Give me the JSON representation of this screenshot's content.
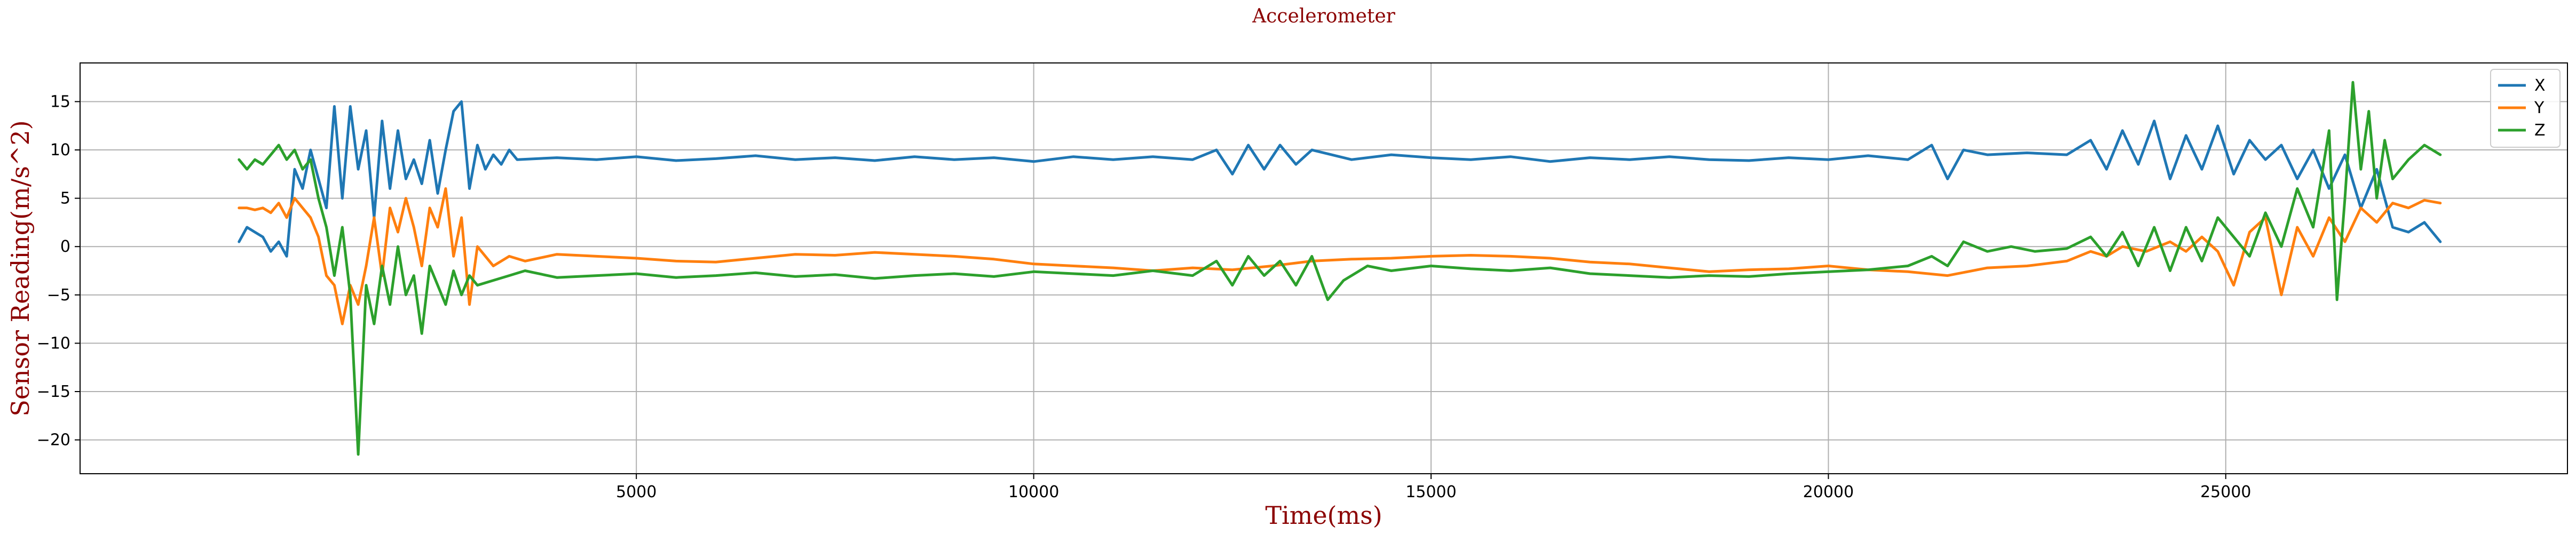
{
  "chart_data": {
    "type": "line",
    "title": "Accelerometer",
    "xlabel": "Time(ms)",
    "ylabel": "Sensor Reading(m/s^2)",
    "xlim": [
      -2000,
      29300
    ],
    "ylim": [
      -23.5,
      19
    ],
    "xticks": [
      5000,
      10000,
      15000,
      20000,
      25000
    ],
    "yticks": [
      -20,
      -15,
      -10,
      -5,
      0,
      5,
      10,
      15
    ],
    "grid": true,
    "legend_position": "top-right",
    "colors": {
      "title": "#8b0000",
      "xlabel": "#8b0000",
      "ylabel": "#8b0000"
    },
    "series": [
      {
        "name": "X",
        "color": "#1f77b4",
        "points": [
          [
            0,
            0.5
          ],
          [
            100,
            2.0
          ],
          [
            200,
            1.5
          ],
          [
            300,
            1.0
          ],
          [
            400,
            -0.5
          ],
          [
            500,
            0.5
          ],
          [
            600,
            -1.0
          ],
          [
            700,
            8.0
          ],
          [
            800,
            6.0
          ],
          [
            900,
            10.0
          ],
          [
            1000,
            7.0
          ],
          [
            1100,
            4.0
          ],
          [
            1200,
            14.5
          ],
          [
            1300,
            5.0
          ],
          [
            1400,
            14.5
          ],
          [
            1500,
            8.0
          ],
          [
            1600,
            12.0
          ],
          [
            1700,
            3.0
          ],
          [
            1800,
            13.0
          ],
          [
            1900,
            6.0
          ],
          [
            2000,
            12.0
          ],
          [
            2100,
            7.0
          ],
          [
            2200,
            9.0
          ],
          [
            2300,
            6.5
          ],
          [
            2400,
            11.0
          ],
          [
            2500,
            5.5
          ],
          [
            2600,
            10.0
          ],
          [
            2700,
            14.0
          ],
          [
            2800,
            15.0
          ],
          [
            2900,
            6.0
          ],
          [
            3000,
            10.5
          ],
          [
            3100,
            8.0
          ],
          [
            3200,
            9.5
          ],
          [
            3300,
            8.5
          ],
          [
            3400,
            10.0
          ],
          [
            3500,
            9.0
          ],
          [
            4000,
            9.2
          ],
          [
            4500,
            9.0
          ],
          [
            5000,
            9.3
          ],
          [
            5500,
            8.9
          ],
          [
            6000,
            9.1
          ],
          [
            6500,
            9.4
          ],
          [
            7000,
            9.0
          ],
          [
            7500,
            9.2
          ],
          [
            8000,
            8.9
          ],
          [
            8500,
            9.3
          ],
          [
            9000,
            9.0
          ],
          [
            9500,
            9.2
          ],
          [
            10000,
            8.8
          ],
          [
            10500,
            9.3
          ],
          [
            11000,
            9.0
          ],
          [
            11500,
            9.3
          ],
          [
            12000,
            9.0
          ],
          [
            12300,
            10.0
          ],
          [
            12500,
            7.5
          ],
          [
            12700,
            10.5
          ],
          [
            12900,
            8.0
          ],
          [
            13100,
            10.5
          ],
          [
            13300,
            8.5
          ],
          [
            13500,
            10.0
          ],
          [
            14000,
            9.0
          ],
          [
            14500,
            9.5
          ],
          [
            15000,
            9.2
          ],
          [
            15500,
            9.0
          ],
          [
            16000,
            9.3
          ],
          [
            16500,
            8.8
          ],
          [
            17000,
            9.2
          ],
          [
            17500,
            9.0
          ],
          [
            18000,
            9.3
          ],
          [
            18500,
            9.0
          ],
          [
            19000,
            8.9
          ],
          [
            19500,
            9.2
          ],
          [
            20000,
            9.0
          ],
          [
            20500,
            9.4
          ],
          [
            21000,
            9.0
          ],
          [
            21300,
            10.5
          ],
          [
            21500,
            7.0
          ],
          [
            21700,
            10.0
          ],
          [
            22000,
            9.5
          ],
          [
            22500,
            9.7
          ],
          [
            23000,
            9.5
          ],
          [
            23300,
            11.0
          ],
          [
            23500,
            8.0
          ],
          [
            23700,
            12.0
          ],
          [
            23900,
            8.5
          ],
          [
            24100,
            13.0
          ],
          [
            24300,
            7.0
          ],
          [
            24500,
            11.5
          ],
          [
            24700,
            8.0
          ],
          [
            24900,
            12.5
          ],
          [
            25100,
            7.5
          ],
          [
            25300,
            11.0
          ],
          [
            25500,
            9.0
          ],
          [
            25700,
            10.5
          ],
          [
            25900,
            7.0
          ],
          [
            26100,
            10.0
          ],
          [
            26300,
            6.0
          ],
          [
            26500,
            9.5
          ],
          [
            26700,
            4.0
          ],
          [
            26900,
            8.0
          ],
          [
            27100,
            2.0
          ],
          [
            27300,
            1.5
          ],
          [
            27500,
            2.5
          ],
          [
            27700,
            0.5
          ]
        ]
      },
      {
        "name": "Y",
        "color": "#ff7f0e",
        "points": [
          [
            0,
            4.0
          ],
          [
            100,
            4.0
          ],
          [
            200,
            3.8
          ],
          [
            300,
            4.0
          ],
          [
            400,
            3.5
          ],
          [
            500,
            4.5
          ],
          [
            600,
            3.0
          ],
          [
            700,
            5.0
          ],
          [
            800,
            4.0
          ],
          [
            900,
            3.0
          ],
          [
            1000,
            1.0
          ],
          [
            1100,
            -3.0
          ],
          [
            1200,
            -4.0
          ],
          [
            1300,
            -8.0
          ],
          [
            1400,
            -4.0
          ],
          [
            1500,
            -6.0
          ],
          [
            1600,
            -2.0
          ],
          [
            1700,
            3.0
          ],
          [
            1800,
            -3.0
          ],
          [
            1900,
            4.0
          ],
          [
            2000,
            1.5
          ],
          [
            2100,
            5.0
          ],
          [
            2200,
            2.0
          ],
          [
            2300,
            -2.0
          ],
          [
            2400,
            4.0
          ],
          [
            2500,
            2.0
          ],
          [
            2600,
            6.0
          ],
          [
            2700,
            -1.0
          ],
          [
            2800,
            3.0
          ],
          [
            2900,
            -6.0
          ],
          [
            3000,
            0.0
          ],
          [
            3200,
            -2.0
          ],
          [
            3400,
            -1.0
          ],
          [
            3600,
            -1.5
          ],
          [
            4000,
            -0.8
          ],
          [
            4500,
            -1.0
          ],
          [
            5000,
            -1.2
          ],
          [
            5500,
            -1.5
          ],
          [
            6000,
            -1.6
          ],
          [
            6500,
            -1.2
          ],
          [
            7000,
            -0.8
          ],
          [
            7500,
            -0.9
          ],
          [
            8000,
            -0.6
          ],
          [
            8500,
            -0.8
          ],
          [
            9000,
            -1.0
          ],
          [
            9500,
            -1.3
          ],
          [
            10000,
            -1.8
          ],
          [
            10500,
            -2.0
          ],
          [
            11000,
            -2.2
          ],
          [
            11500,
            -2.5
          ],
          [
            12000,
            -2.2
          ],
          [
            12500,
            -2.4
          ],
          [
            13000,
            -2.0
          ],
          [
            13500,
            -1.5
          ],
          [
            14000,
            -1.3
          ],
          [
            14500,
            -1.2
          ],
          [
            15000,
            -1.0
          ],
          [
            15500,
            -0.9
          ],
          [
            16000,
            -1.0
          ],
          [
            16500,
            -1.2
          ],
          [
            17000,
            -1.6
          ],
          [
            17500,
            -1.8
          ],
          [
            18000,
            -2.2
          ],
          [
            18500,
            -2.6
          ],
          [
            19000,
            -2.4
          ],
          [
            19500,
            -2.3
          ],
          [
            20000,
            -2.0
          ],
          [
            20500,
            -2.4
          ],
          [
            21000,
            -2.6
          ],
          [
            21500,
            -3.0
          ],
          [
            22000,
            -2.2
          ],
          [
            22500,
            -2.0
          ],
          [
            23000,
            -1.5
          ],
          [
            23300,
            -0.5
          ],
          [
            23500,
            -1.0
          ],
          [
            23700,
            0.0
          ],
          [
            24000,
            -0.5
          ],
          [
            24300,
            0.5
          ],
          [
            24500,
            -0.5
          ],
          [
            24700,
            1.0
          ],
          [
            24900,
            -0.5
          ],
          [
            25100,
            -4.0
          ],
          [
            25300,
            1.5
          ],
          [
            25500,
            3.0
          ],
          [
            25700,
            -5.0
          ],
          [
            25900,
            2.0
          ],
          [
            26100,
            -1.0
          ],
          [
            26300,
            3.0
          ],
          [
            26500,
            0.5
          ],
          [
            26700,
            4.0
          ],
          [
            26900,
            2.5
          ],
          [
            27100,
            4.5
          ],
          [
            27300,
            4.0
          ],
          [
            27500,
            4.8
          ],
          [
            27700,
            4.5
          ]
        ]
      },
      {
        "name": "Z",
        "color": "#2ca02c",
        "points": [
          [
            0,
            9.0
          ],
          [
            100,
            8.0
          ],
          [
            200,
            9.0
          ],
          [
            300,
            8.5
          ],
          [
            400,
            9.5
          ],
          [
            500,
            10.5
          ],
          [
            600,
            9.0
          ],
          [
            700,
            10.0
          ],
          [
            800,
            8.0
          ],
          [
            900,
            9.0
          ],
          [
            1000,
            5.0
          ],
          [
            1100,
            2.0
          ],
          [
            1200,
            -3.0
          ],
          [
            1300,
            2.0
          ],
          [
            1400,
            -5.0
          ],
          [
            1500,
            -21.5
          ],
          [
            1600,
            -4.0
          ],
          [
            1700,
            -8.0
          ],
          [
            1800,
            -2.0
          ],
          [
            1900,
            -6.0
          ],
          [
            2000,
            0.0
          ],
          [
            2100,
            -5.0
          ],
          [
            2200,
            -3.0
          ],
          [
            2300,
            -9.0
          ],
          [
            2400,
            -2.0
          ],
          [
            2500,
            -4.0
          ],
          [
            2600,
            -6.0
          ],
          [
            2700,
            -2.5
          ],
          [
            2800,
            -5.0
          ],
          [
            2900,
            -3.0
          ],
          [
            3000,
            -4.0
          ],
          [
            3200,
            -3.5
          ],
          [
            3400,
            -3.0
          ],
          [
            3600,
            -2.5
          ],
          [
            4000,
            -3.2
          ],
          [
            4500,
            -3.0
          ],
          [
            5000,
            -2.8
          ],
          [
            5500,
            -3.2
          ],
          [
            6000,
            -3.0
          ],
          [
            6500,
            -2.7
          ],
          [
            7000,
            -3.1
          ],
          [
            7500,
            -2.9
          ],
          [
            8000,
            -3.3
          ],
          [
            8500,
            -3.0
          ],
          [
            9000,
            -2.8
          ],
          [
            9500,
            -3.1
          ],
          [
            10000,
            -2.6
          ],
          [
            10500,
            -2.8
          ],
          [
            11000,
            -3.0
          ],
          [
            11500,
            -2.5
          ],
          [
            12000,
            -3.0
          ],
          [
            12300,
            -1.5
          ],
          [
            12500,
            -4.0
          ],
          [
            12700,
            -1.0
          ],
          [
            12900,
            -3.0
          ],
          [
            13100,
            -1.5
          ],
          [
            13300,
            -4.0
          ],
          [
            13500,
            -1.0
          ],
          [
            13700,
            -5.5
          ],
          [
            13900,
            -3.5
          ],
          [
            14200,
            -2.0
          ],
          [
            14500,
            -2.5
          ],
          [
            15000,
            -2.0
          ],
          [
            15500,
            -2.3
          ],
          [
            16000,
            -2.5
          ],
          [
            16500,
            -2.2
          ],
          [
            17000,
            -2.8
          ],
          [
            17500,
            -3.0
          ],
          [
            18000,
            -3.2
          ],
          [
            18500,
            -3.0
          ],
          [
            19000,
            -3.1
          ],
          [
            19500,
            -2.8
          ],
          [
            20000,
            -2.6
          ],
          [
            20500,
            -2.4
          ],
          [
            21000,
            -2.0
          ],
          [
            21300,
            -1.0
          ],
          [
            21500,
            -2.0
          ],
          [
            21700,
            0.5
          ],
          [
            22000,
            -0.5
          ],
          [
            22300,
            0.0
          ],
          [
            22600,
            -0.5
          ],
          [
            23000,
            -0.2
          ],
          [
            23300,
            1.0
          ],
          [
            23500,
            -1.0
          ],
          [
            23700,
            1.5
          ],
          [
            23900,
            -2.0
          ],
          [
            24100,
            2.0
          ],
          [
            24300,
            -2.5
          ],
          [
            24500,
            2.0
          ],
          [
            24700,
            -1.5
          ],
          [
            24900,
            3.0
          ],
          [
            25100,
            1.0
          ],
          [
            25300,
            -1.0
          ],
          [
            25500,
            3.5
          ],
          [
            25700,
            0.0
          ],
          [
            25900,
            6.0
          ],
          [
            26100,
            2.0
          ],
          [
            26300,
            12.0
          ],
          [
            26400,
            -5.5
          ],
          [
            26500,
            5.0
          ],
          [
            26600,
            17.0
          ],
          [
            26700,
            8.0
          ],
          [
            26800,
            14.0
          ],
          [
            26900,
            5.0
          ],
          [
            27000,
            11.0
          ],
          [
            27100,
            7.0
          ],
          [
            27300,
            9.0
          ],
          [
            27500,
            10.5
          ],
          [
            27700,
            9.5
          ]
        ]
      }
    ]
  }
}
